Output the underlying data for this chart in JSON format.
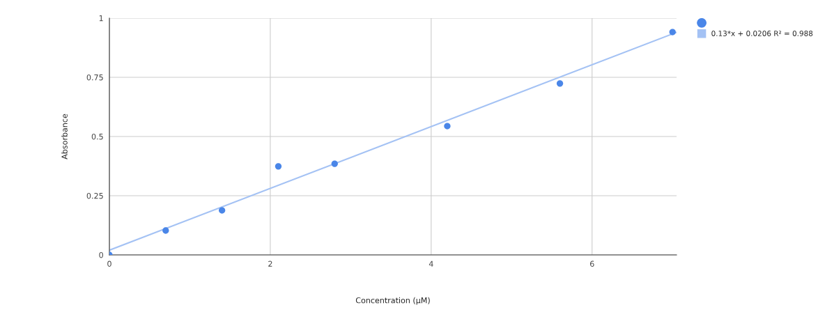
{
  "chart_data": {
    "type": "scatter",
    "xlabel": "Concentration (µM)",
    "ylabel": "Absorbance",
    "x": [
      0,
      0.7,
      1.4,
      2.1,
      2.8,
      4.2,
      5.6,
      7.0
    ],
    "series": [
      {
        "color": "#4a86e8",
        "values": [
          0,
          0.103,
          0.188,
          0.374,
          0.385,
          0.544,
          0.724,
          0.941
        ],
        "marker": "circle"
      },
      {
        "type": "line",
        "name": "0.13*x + 0.0206 R² = 0.988",
        "color": "#a4c2f4",
        "x": [
          0,
          7.05
        ],
        "values": [
          0.02,
          0.94
        ],
        "marker": "none"
      }
    ],
    "xlim": [
      0,
      7.05
    ],
    "ylim": [
      0,
      1
    ],
    "xticks": [
      0,
      2,
      4,
      6
    ],
    "yticks": [
      0,
      0.25,
      0.5,
      0.75,
      1
    ],
    "grid": true,
    "legend": "top right"
  }
}
